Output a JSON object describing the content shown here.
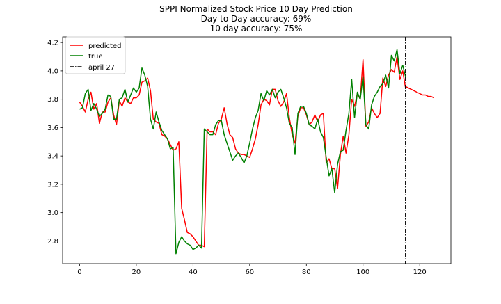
{
  "chart_data": {
    "type": "line",
    "title_lines": [
      "SPPI Normalized Stock Price 10 Day Prediction",
      "Day to Day accuracy: 69%",
      "10 day accuracy: 75%"
    ],
    "xlabel": "",
    "ylabel": "",
    "xlim": [
      -6,
      131
    ],
    "ylim": [
      2.64,
      4.24
    ],
    "x_ticks": [
      0,
      20,
      40,
      60,
      80,
      100,
      120
    ],
    "x_tick_labels": [
      "0",
      "20",
      "40",
      "60",
      "80",
      "100",
      "120"
    ],
    "y_ticks": [
      2.8,
      3.0,
      3.2,
      3.4,
      3.6,
      3.8,
      4.0,
      4.2
    ],
    "y_tick_labels": [
      "2.8",
      "3.0",
      "3.2",
      "3.4",
      "3.6",
      "3.8",
      "4.0",
      "4.2"
    ],
    "grid": false,
    "legend_position": "top-left",
    "vertical_line": {
      "x": 115,
      "label": "april 27",
      "color": "#000000",
      "style": "dash-dot"
    },
    "series": [
      {
        "name": "predicted",
        "color": "#ff0000",
        "x": [
          0,
          1,
          2,
          3,
          4,
          5,
          6,
          7,
          8,
          9,
          10,
          11,
          12,
          13,
          14,
          15,
          16,
          17,
          18,
          19,
          20,
          21,
          22,
          23,
          24,
          25,
          26,
          27,
          28,
          29,
          30,
          31,
          32,
          33,
          34,
          35,
          36,
          37,
          38,
          39,
          40,
          41,
          42,
          43,
          44,
          45,
          46,
          47,
          48,
          49,
          50,
          51,
          52,
          53,
          54,
          55,
          56,
          57,
          58,
          59,
          60,
          61,
          62,
          63,
          64,
          65,
          66,
          67,
          68,
          69,
          70,
          71,
          72,
          73,
          74,
          75,
          76,
          77,
          78,
          79,
          80,
          81,
          82,
          83,
          84,
          85,
          86,
          87,
          88,
          89,
          90,
          91,
          92,
          93,
          94,
          95,
          96,
          97,
          98,
          99,
          100,
          101,
          102,
          103,
          104,
          105,
          106,
          107,
          108,
          109,
          110,
          111,
          112,
          113,
          114,
          115
        ],
        "values": [
          3.78,
          3.75,
          3.71,
          3.8,
          3.85,
          3.73,
          3.77,
          3.63,
          3.71,
          3.71,
          3.78,
          3.81,
          3.69,
          3.62,
          3.79,
          3.75,
          3.81,
          3.78,
          3.77,
          3.81,
          3.81,
          3.83,
          3.92,
          3.93,
          3.95,
          3.86,
          3.66,
          3.64,
          3.63,
          3.55,
          3.54,
          3.52,
          3.48,
          3.44,
          3.45,
          3.5,
          3.03,
          2.95,
          2.86,
          2.85,
          2.83,
          2.8,
          2.77,
          2.77,
          2.76,
          3.59,
          3.57,
          3.57,
          3.55,
          3.63,
          3.66,
          3.74,
          3.63,
          3.55,
          3.53,
          3.45,
          3.42,
          3.41,
          3.41,
          3.4,
          3.39,
          3.45,
          3.52,
          3.62,
          3.76,
          3.8,
          3.79,
          3.76,
          3.87,
          3.87,
          3.79,
          3.75,
          3.78,
          3.84,
          3.67,
          3.55,
          3.49,
          3.68,
          3.74,
          3.74,
          3.69,
          3.62,
          3.64,
          3.69,
          3.64,
          3.69,
          3.7,
          3.35,
          3.38,
          3.31,
          3.31,
          3.17,
          3.41,
          3.54,
          3.42,
          3.55,
          3.8,
          3.75,
          3.84,
          3.8,
          4.08,
          3.61,
          3.64,
          3.74,
          3.7,
          3.67,
          3.7,
          3.95,
          3.89,
          3.97,
          4.01,
          3.99,
          4.1,
          3.94,
          4.0,
          3.88
        ],
        "extension": {
          "x": [
            115,
            116,
            117,
            118,
            119,
            120,
            121,
            122,
            123,
            124,
            125
          ],
          "values": [
            3.89,
            3.88,
            3.87,
            3.86,
            3.85,
            3.84,
            3.83,
            3.83,
            3.82,
            3.82,
            3.81
          ]
        }
      },
      {
        "name": "true",
        "color": "#008000",
        "x": [
          0,
          1,
          2,
          3,
          4,
          5,
          6,
          7,
          8,
          9,
          10,
          11,
          12,
          13,
          14,
          15,
          16,
          17,
          18,
          19,
          20,
          21,
          22,
          23,
          24,
          25,
          26,
          27,
          28,
          29,
          30,
          31,
          32,
          33,
          34,
          35,
          36,
          37,
          38,
          39,
          40,
          41,
          42,
          43,
          44,
          45,
          46,
          47,
          48,
          49,
          50,
          51,
          52,
          53,
          54,
          55,
          56,
          57,
          58,
          59,
          60,
          61,
          62,
          63,
          64,
          65,
          66,
          67,
          68,
          69,
          70,
          71,
          72,
          73,
          74,
          75,
          76,
          77,
          78,
          79,
          80,
          81,
          82,
          83,
          84,
          85,
          86,
          87,
          88,
          89,
          90,
          91,
          92,
          93,
          94,
          95,
          96,
          97,
          98,
          99,
          100,
          101,
          102,
          103,
          104,
          105,
          106,
          107,
          108,
          109,
          110,
          111,
          112,
          113,
          114,
          115
        ],
        "values": [
          3.73,
          3.74,
          3.84,
          3.87,
          3.72,
          3.77,
          3.73,
          3.68,
          3.7,
          3.73,
          3.83,
          3.82,
          3.66,
          3.66,
          3.8,
          3.81,
          3.87,
          3.78,
          3.83,
          3.88,
          3.85,
          3.88,
          4.02,
          3.97,
          3.89,
          3.66,
          3.59,
          3.71,
          3.64,
          3.58,
          3.55,
          3.52,
          3.45,
          3.46,
          2.71,
          2.79,
          2.83,
          2.8,
          2.78,
          2.77,
          2.74,
          2.75,
          2.77,
          2.75,
          3.59,
          3.57,
          3.55,
          3.55,
          3.62,
          3.65,
          3.65,
          3.55,
          3.49,
          3.43,
          3.37,
          3.4,
          3.42,
          3.39,
          3.35,
          3.4,
          3.49,
          3.59,
          3.67,
          3.72,
          3.84,
          3.79,
          3.86,
          3.83,
          3.87,
          3.81,
          3.85,
          3.87,
          3.81,
          3.74,
          3.63,
          3.6,
          3.41,
          3.7,
          3.75,
          3.75,
          3.7,
          3.62,
          3.61,
          3.59,
          3.66,
          3.57,
          3.53,
          3.39,
          3.26,
          3.31,
          3.14,
          3.34,
          3.43,
          3.44,
          3.58,
          3.7,
          3.94,
          3.67,
          3.85,
          3.8,
          3.96,
          3.62,
          3.59,
          3.76,
          3.82,
          3.85,
          3.89,
          3.91,
          3.97,
          3.88,
          4.11,
          4.07,
          4.15,
          3.98,
          4.04,
          3.96
        ]
      }
    ]
  }
}
